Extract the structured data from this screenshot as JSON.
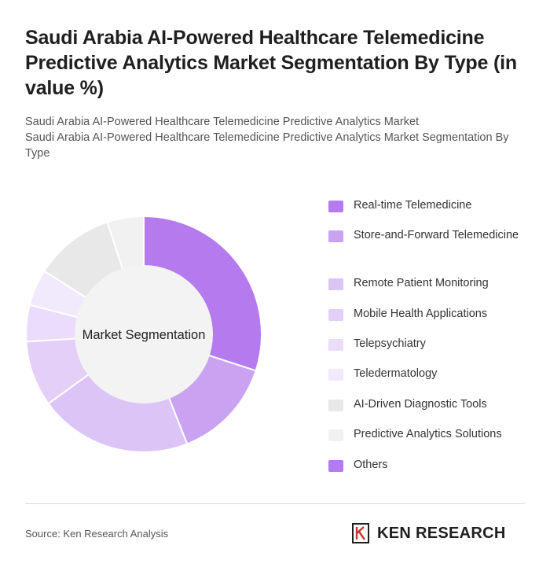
{
  "header": {
    "title": "Saudi Arabia AI-Powered Healthcare Telemedicine Predictive Analytics Market Segmentation By Type (in value %)",
    "subtitle_line1": "Saudi Arabia AI-Powered Healthcare Telemedicine Predictive Analytics Market",
    "subtitle_line2": "Saudi Arabia AI-Powered Healthcare Telemedicine Predictive Analytics Market Segmentation By Type"
  },
  "chart_data": {
    "type": "pie",
    "center_label": "Market Segmentation",
    "categories": [
      "Real-time Telemedicine",
      "Store-and-Forward Telemedicine",
      "Remote Patient Monitoring",
      "Mobile Health Applications",
      "Telepsychiatry",
      "Teledermatology",
      "AI-Driven Diagnostic Tools",
      "Predictive Analytics Solutions",
      "Others"
    ],
    "values": [
      30,
      14,
      21,
      9,
      5,
      5,
      11,
      5,
      0
    ],
    "colors": [
      "#b57bee",
      "#c9a3f2",
      "#dcc4f7",
      "#e3cff8",
      "#eadcfa",
      "#f1e9fc",
      "#e8e8e8",
      "#f1f1f1",
      "#b57bee"
    ],
    "center_color": "#f3f3f3",
    "legend_position": "right"
  },
  "footer": {
    "source": "Source: Ken Research Analysis",
    "brand": "KEN RESEARCH",
    "logo_icon": "ken-research-k-logo"
  }
}
